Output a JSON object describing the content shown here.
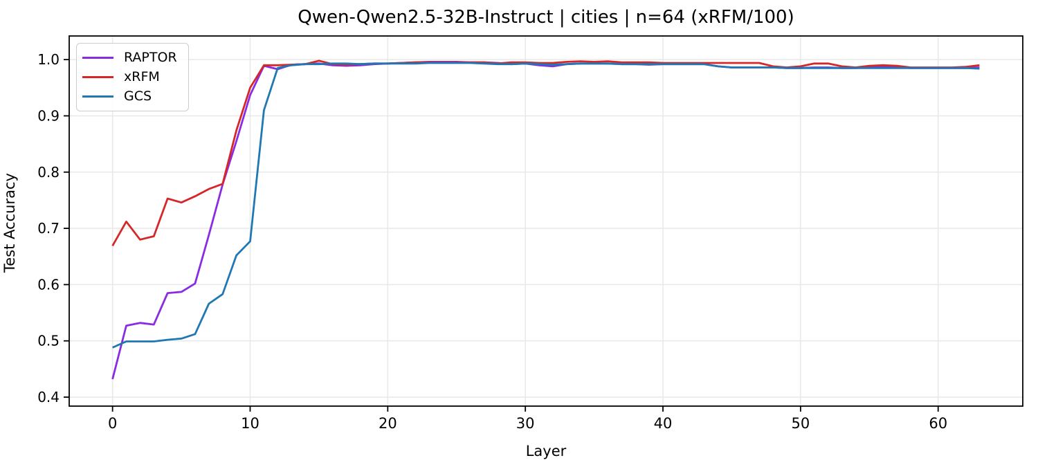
{
  "chart_data": {
    "type": "line",
    "title": "Qwen-Qwen2.5-32B-Instruct | cities | n=64 (xRFM/100)",
    "xlabel": "Layer",
    "ylabel": "Test Accuracy",
    "xlim": [
      -3.15,
      66.15
    ],
    "ylim": [
      0.384,
      1.042
    ],
    "xticks": [
      0,
      10,
      20,
      30,
      40,
      50,
      60
    ],
    "xtick_labels": [
      "0",
      "10",
      "20",
      "30",
      "40",
      "50",
      "60"
    ],
    "yticks": [
      0.4,
      0.5,
      0.6,
      0.7,
      0.8,
      0.9,
      1.0
    ],
    "ytick_labels": [
      "0.4",
      "0.5",
      "0.6",
      "0.7",
      "0.8",
      "0.9",
      "1.0"
    ],
    "grid": true,
    "grid_color": "#e8e8e8",
    "spine_color": "#000000",
    "background_color": "#ffffff",
    "legend_position": "upper left",
    "x": [
      0,
      1,
      2,
      3,
      4,
      5,
      6,
      7,
      8,
      9,
      10,
      11,
      12,
      13,
      14,
      15,
      16,
      17,
      18,
      19,
      20,
      21,
      22,
      23,
      24,
      25,
      26,
      27,
      28,
      29,
      30,
      31,
      32,
      33,
      34,
      35,
      36,
      37,
      38,
      39,
      40,
      41,
      42,
      43,
      44,
      45,
      46,
      47,
      48,
      49,
      50,
      51,
      52,
      53,
      54,
      55,
      56,
      57,
      58,
      59,
      60,
      61,
      62,
      63
    ],
    "series": [
      {
        "name": "RAPTOR",
        "color": "#8a2be2",
        "values": [
          0.432,
          0.527,
          0.532,
          0.529,
          0.585,
          0.587,
          0.602,
          0.688,
          0.778,
          0.855,
          0.937,
          0.989,
          0.983,
          0.991,
          0.992,
          0.993,
          0.99,
          0.989,
          0.99,
          0.992,
          0.993,
          0.994,
          0.995,
          0.996,
          0.996,
          0.996,
          0.995,
          0.995,
          0.994,
          0.992,
          0.993,
          0.99,
          0.988,
          0.992,
          0.993,
          0.993,
          0.993,
          0.992,
          0.992,
          0.991,
          0.992,
          0.992,
          0.992,
          0.992,
          0.988,
          0.986,
          0.986,
          0.986,
          0.986,
          0.985,
          0.985,
          0.986,
          0.986,
          0.985,
          0.985,
          0.986,
          0.987,
          0.986,
          0.985,
          0.985,
          0.985,
          0.985,
          0.985,
          0.986
        ]
      },
      {
        "name": "xRFM",
        "color": "#d62728",
        "values": [
          0.669,
          0.712,
          0.68,
          0.686,
          0.753,
          0.746,
          0.757,
          0.77,
          0.779,
          0.874,
          0.95,
          0.99,
          0.99,
          0.991,
          0.992,
          0.998,
          0.992,
          0.991,
          0.992,
          0.993,
          0.993,
          0.994,
          0.995,
          0.995,
          0.995,
          0.995,
          0.995,
          0.995,
          0.993,
          0.995,
          0.995,
          0.994,
          0.994,
          0.996,
          0.997,
          0.996,
          0.997,
          0.995,
          0.995,
          0.995,
          0.994,
          0.994,
          0.994,
          0.994,
          0.994,
          0.994,
          0.994,
          0.994,
          0.988,
          0.986,
          0.988,
          0.993,
          0.993,
          0.988,
          0.986,
          0.989,
          0.99,
          0.989,
          0.986,
          0.986,
          0.986,
          0.986,
          0.987,
          0.99
        ]
      },
      {
        "name": "GCS",
        "color": "#1f77b4",
        "values": [
          0.488,
          0.499,
          0.499,
          0.499,
          0.502,
          0.504,
          0.512,
          0.566,
          0.583,
          0.652,
          0.677,
          0.91,
          0.985,
          0.99,
          0.992,
          0.992,
          0.993,
          0.993,
          0.992,
          0.993,
          0.993,
          0.993,
          0.993,
          0.994,
          0.994,
          0.994,
          0.994,
          0.993,
          0.992,
          0.992,
          0.993,
          0.992,
          0.991,
          0.992,
          0.993,
          0.993,
          0.993,
          0.992,
          0.992,
          0.992,
          0.992,
          0.992,
          0.992,
          0.992,
          0.988,
          0.986,
          0.986,
          0.986,
          0.986,
          0.985,
          0.985,
          0.985,
          0.985,
          0.985,
          0.985,
          0.985,
          0.985,
          0.985,
          0.985,
          0.985,
          0.985,
          0.985,
          0.985,
          0.984
        ]
      }
    ]
  }
}
